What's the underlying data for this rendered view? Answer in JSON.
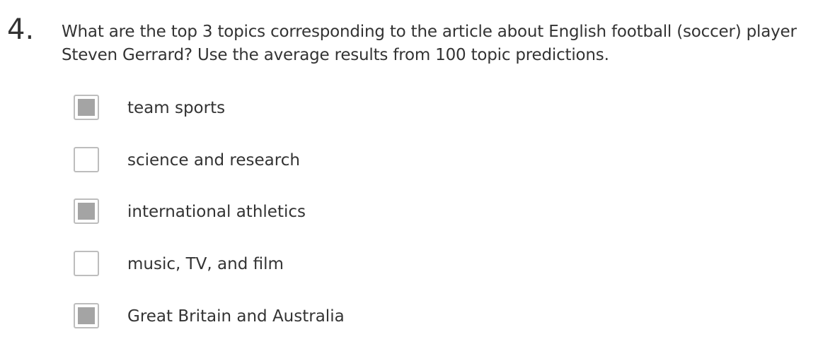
{
  "question": {
    "number": "4.",
    "text": "What are the top 3 topics corresponding to the article about English football (soccer) player Steven Gerrard? Use the average results from 100 topic predictions."
  },
  "options": [
    {
      "label": "team sports",
      "checked": true
    },
    {
      "label": "science and research",
      "checked": false
    },
    {
      "label": "international athletics",
      "checked": true
    },
    {
      "label": "music, TV, and film",
      "checked": false
    },
    {
      "label": "Great Britain and Australia",
      "checked": true
    }
  ],
  "colors": {
    "text": "#333333",
    "checkbox_border": "#bdbdbd",
    "checkbox_fill": "#a4a4a4"
  }
}
